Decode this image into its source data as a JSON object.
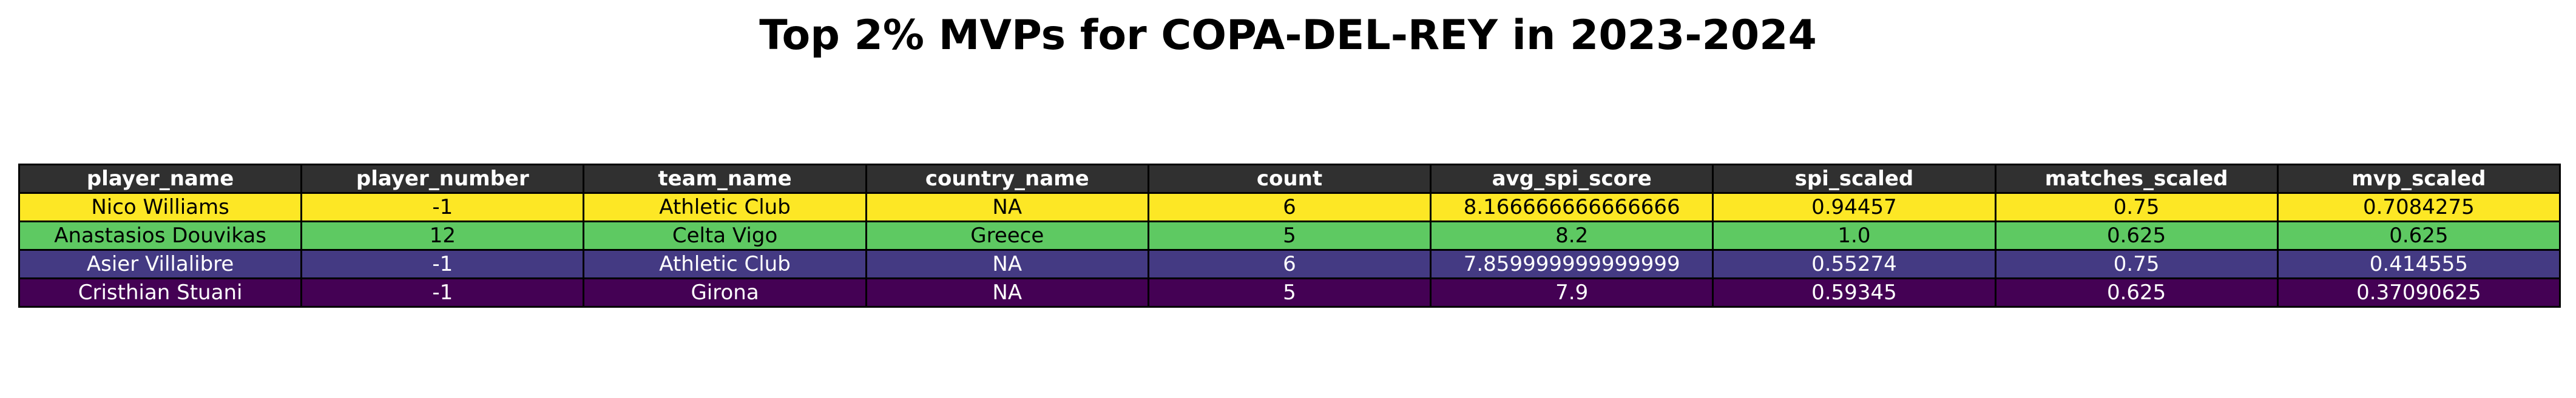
{
  "title": "Top 2% MVPs for COPA-DEL-REY in 2023-2024",
  "colors": {
    "header_bg": "#303030",
    "header_text": "#ffffff",
    "border": "#000000"
  },
  "chart_data": {
    "type": "table",
    "title": "Top 2% MVPs for COPA-DEL-REY in 2023-2024",
    "columns": [
      "player_name",
      "player_number",
      "team_name",
      "country_name",
      "count",
      "avg_spi_score",
      "spi_scaled",
      "matches_scaled",
      "mvp_scaled"
    ],
    "rows": [
      {
        "cells": [
          "Nico Williams",
          "-1",
          "Athletic Club",
          "NA",
          "6",
          "8.166666666666666",
          "0.94457",
          "0.75",
          "0.7084275"
        ],
        "bg": "#fde725",
        "text_color": "#000000"
      },
      {
        "cells": [
          "Anastasios Douvikas",
          "12",
          "Celta Vigo",
          "Greece",
          "5",
          "8.2",
          "1.0",
          "0.625",
          "0.625"
        ],
        "bg": "#5ec962",
        "text_color": "#000000"
      },
      {
        "cells": [
          "Asier Villalibre",
          "-1",
          "Athletic Club",
          "NA",
          "6",
          "7.859999999999999",
          "0.55274",
          "0.75",
          "0.414555"
        ],
        "bg": "#443a83",
        "text_color": "#ffffff"
      },
      {
        "cells": [
          "Cristhian Stuani",
          "-1",
          "Girona",
          "NA",
          "5",
          "7.9",
          "0.59345",
          "0.625",
          "0.37090625"
        ],
        "bg": "#440154",
        "text_color": "#ffffff"
      }
    ]
  }
}
